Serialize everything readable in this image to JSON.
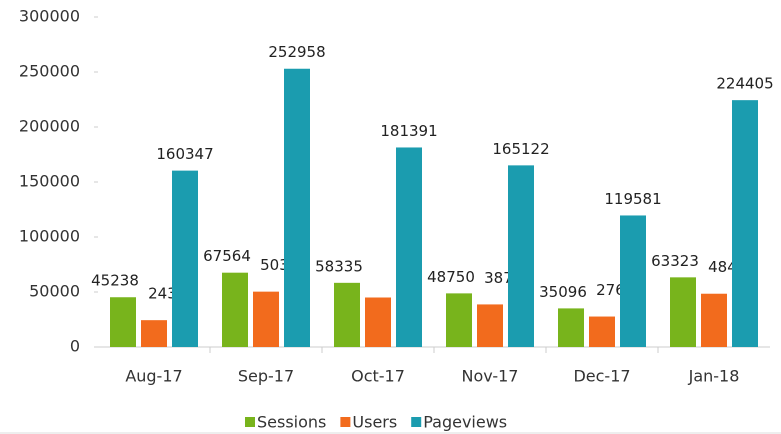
{
  "chart_data": {
    "type": "bar",
    "categories": [
      "Aug-17",
      "Sep-17",
      "Oct-17",
      "Nov-17",
      "Dec-17",
      "Jan-18"
    ],
    "series": [
      {
        "name": "Sessions",
        "color": "#78b41c",
        "values": [
          45238,
          67564,
          58335,
          48750,
          35096,
          63323
        ]
      },
      {
        "name": "Users",
        "color": "#f26b1d",
        "values": [
          24392,
          50320,
          45000,
          38709,
          27691,
          48429
        ],
        "value_labels": [
          "24392",
          "50320",
          null,
          "38709",
          "27691",
          "48429"
        ]
      },
      {
        "name": "Pageviews",
        "color": "#1b9caf",
        "values": [
          160347,
          252958,
          181391,
          165122,
          119581,
          224405
        ]
      }
    ],
    "ylim": [
      0,
      300000
    ],
    "yticks": [
      0,
      50000,
      100000,
      150000,
      200000,
      250000,
      300000
    ],
    "legend": "bottom"
  }
}
